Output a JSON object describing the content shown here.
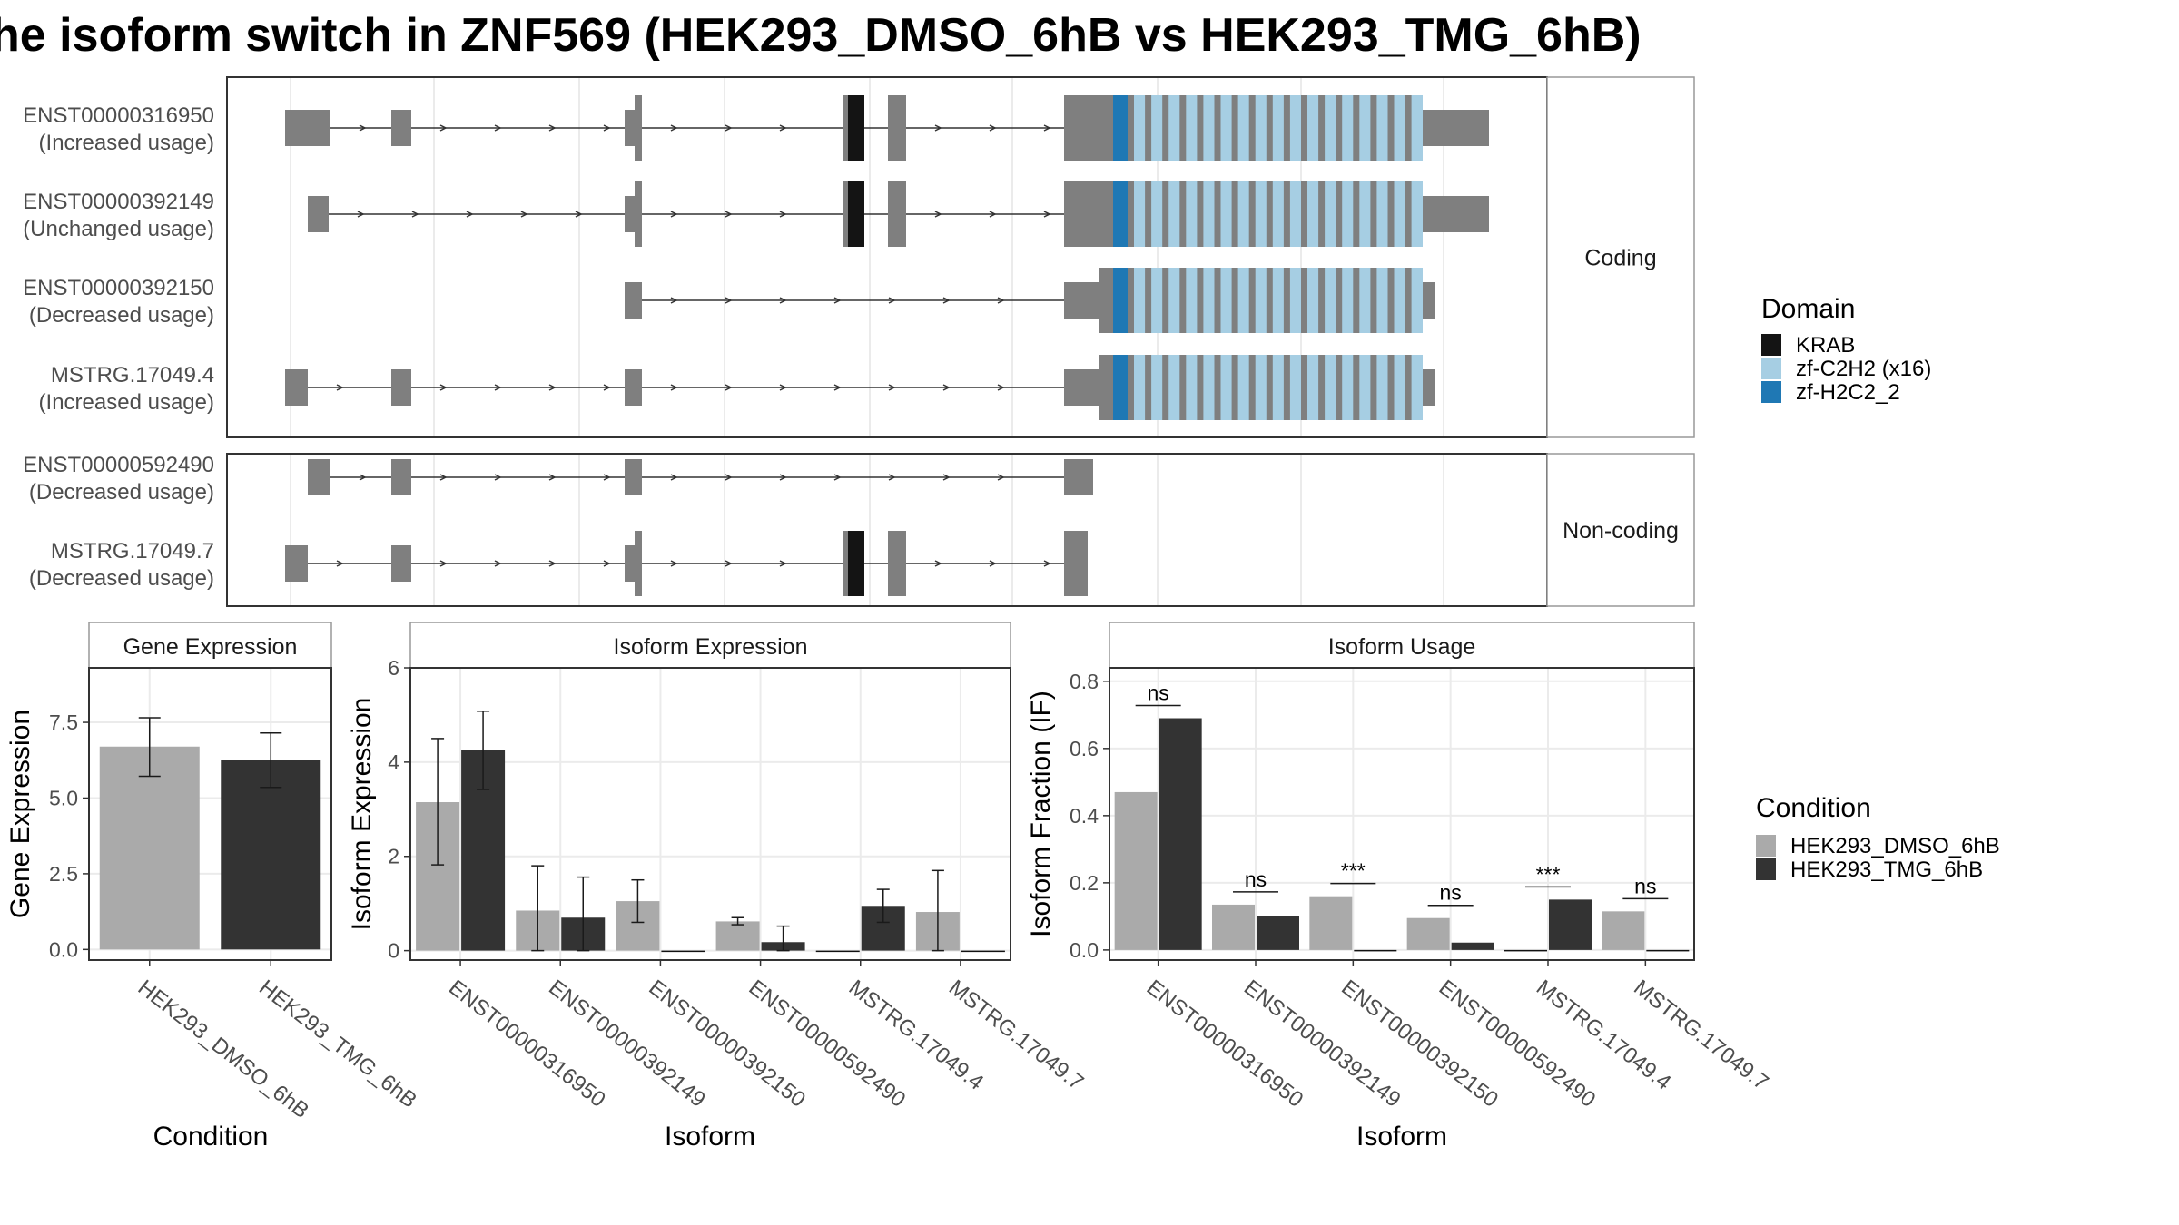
{
  "title": "he isoform switch in ZNF569 (HEK293_DMSO_6hB vs HEK293_TMG_6hB)",
  "colors": {
    "exon": "#7f7f7f",
    "krab": "#141414",
    "zf_c2h2": "#a6cee3",
    "zf_h2c2": "#1f78b4",
    "dmso": "#aaaaaa",
    "tmg": "#333333"
  },
  "structure": {
    "coding_strip": "Coding",
    "noncoding_strip": "Non-coding",
    "transcripts": [
      {
        "id": "ENST00000316950",
        "usage": "(Increased usage)",
        "group": "coding",
        "utr5": true,
        "tail_long": true
      },
      {
        "id": "ENST00000392149",
        "usage": "(Unchanged usage)",
        "group": "coding",
        "utr5": false,
        "tail_long": true
      },
      {
        "id": "ENST00000392150",
        "usage": "(Decreased usage)",
        "group": "coding",
        "utr5": false,
        "tail_long": false
      },
      {
        "id": "MSTRG.17049.4",
        "usage": "(Increased usage)",
        "group": "coding",
        "utr5": true,
        "tail_long": false
      },
      {
        "id": "ENST00000592490",
        "usage": "(Decreased usage)",
        "group": "noncoding"
      },
      {
        "id": "MSTRG.17049.7",
        "usage": "(Decreased usage)",
        "group": "noncoding"
      }
    ]
  },
  "legend_domain": {
    "title": "Domain",
    "items": [
      {
        "label": "KRAB",
        "color": "#141414"
      },
      {
        "label": "zf-C2H2 (x16)",
        "color": "#a6cee3"
      },
      {
        "label": "zf-H2C2_2",
        "color": "#1f78b4"
      }
    ]
  },
  "legend_condition": {
    "title": "Condition",
    "items": [
      {
        "label": "HEK293_DMSO_6hB",
        "color": "#aaaaaa"
      },
      {
        "label": "HEK293_TMG_6hB",
        "color": "#333333"
      }
    ]
  },
  "chart_data": [
    {
      "type": "bar",
      "title": "Gene Expression",
      "xlabel": "Condition",
      "ylabel": "Gene Expression",
      "categories": [
        "HEK293_DMSO_6hB",
        "HEK293_TMG_6hB"
      ],
      "values": [
        6.7,
        6.25
      ],
      "error_low": [
        5.72,
        5.35
      ],
      "error_high": [
        7.65,
        7.15
      ],
      "yticks": [
        "0.0",
        "2.5",
        "5.0",
        "7.5"
      ],
      "ylim": [
        -0.35,
        9.3
      ],
      "grid": true
    },
    {
      "type": "bar",
      "title": "Isoform Expression",
      "xlabel": "Isoform",
      "ylabel": "Isoform Expression",
      "categories": [
        "ENST00000316950",
        "ENST00000392149",
        "ENST00000392150",
        "ENST00000592490",
        "MSTRG.17049.4",
        "MSTRG.17049.7"
      ],
      "series": [
        {
          "name": "HEK293_DMSO_6hB",
          "values": [
            3.15,
            0.85,
            1.05,
            0.62,
            0.0,
            0.82
          ],
          "error_low": [
            1.82,
            0.0,
            0.6,
            0.55,
            0.0,
            0.0
          ],
          "error_high": [
            4.5,
            1.8,
            1.5,
            0.7,
            0.0,
            1.7
          ]
        },
        {
          "name": "HEK293_TMG_6hB",
          "values": [
            4.25,
            0.7,
            0.0,
            0.18,
            0.95,
            0.0
          ],
          "error_low": [
            3.42,
            0.0,
            0.0,
            0.0,
            0.6,
            0.0
          ],
          "error_high": [
            5.08,
            1.56,
            0.0,
            0.52,
            1.3,
            0.0
          ]
        }
      ],
      "yticks": [
        "0",
        "2",
        "4",
        "6"
      ],
      "ylim": [
        -0.2,
        6.0
      ],
      "grid": true
    },
    {
      "type": "bar",
      "title": "Isoform Usage",
      "xlabel": "Isoform",
      "ylabel": "Isoform Fraction (IF)",
      "categories": [
        "ENST00000316950",
        "ENST00000392149",
        "ENST00000392150",
        "ENST00000592490",
        "MSTRG.17049.4",
        "MSTRG.17049.7"
      ],
      "series": [
        {
          "name": "HEK293_DMSO_6hB",
          "values": [
            0.47,
            0.135,
            0.16,
            0.095,
            0.0,
            0.115
          ]
        },
        {
          "name": "HEK293_TMG_6hB",
          "values": [
            0.69,
            0.1,
            0.0,
            0.022,
            0.15,
            0.0
          ]
        }
      ],
      "significance": [
        "ns",
        "ns",
        "***",
        "ns",
        "***",
        "ns"
      ],
      "yticks": [
        "0.0",
        "0.2",
        "0.4",
        "0.6",
        "0.8"
      ],
      "ylim": [
        -0.03,
        0.84
      ],
      "grid": true
    }
  ]
}
